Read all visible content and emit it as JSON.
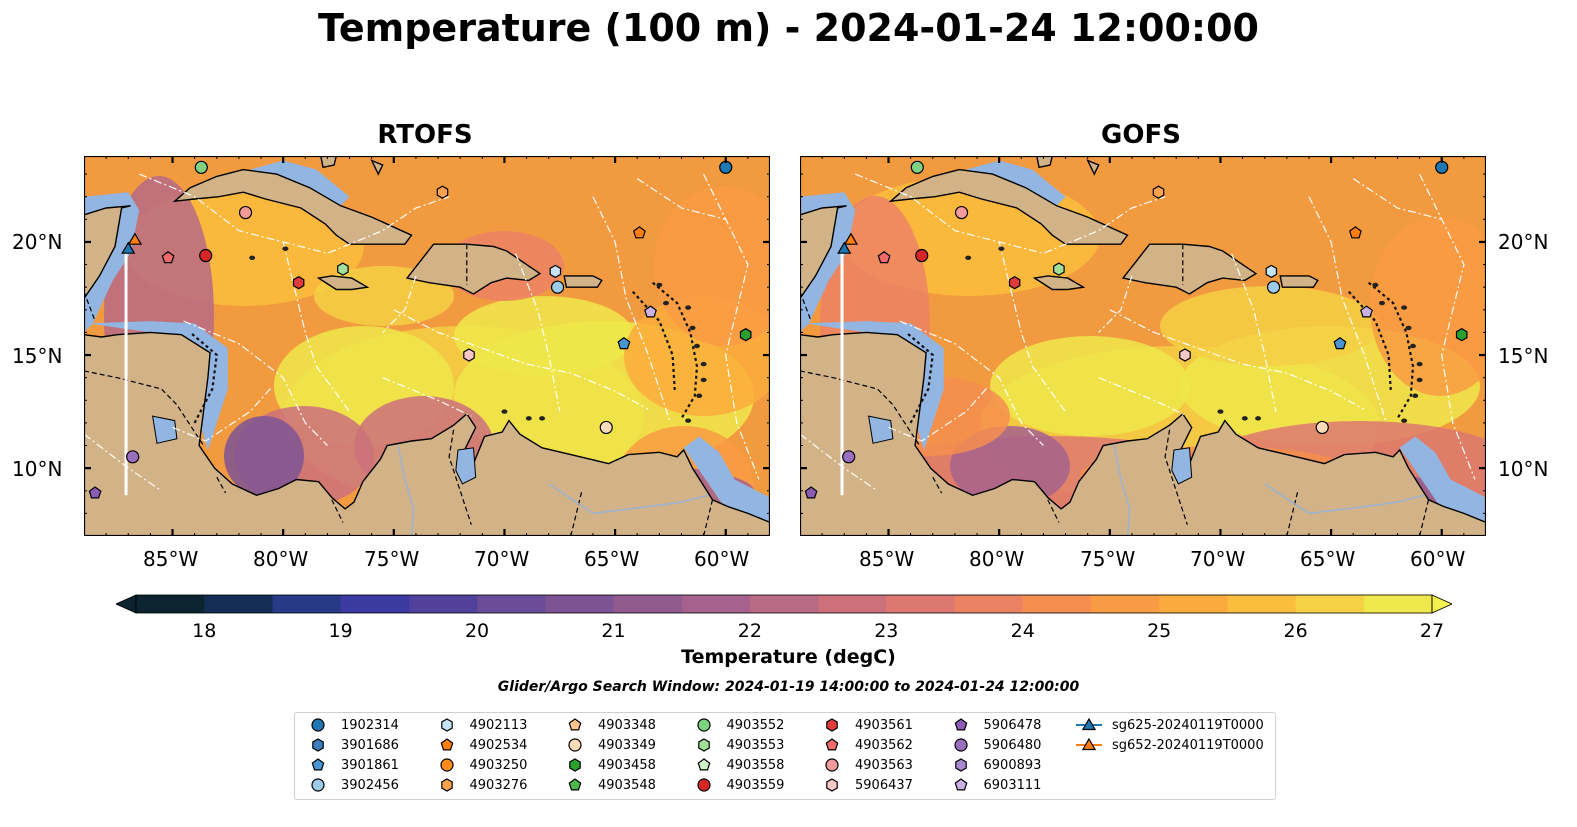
{
  "title": "Temperature (100 m) - 2024-01-24 12:00:00",
  "panels": [
    {
      "title": "RTOFS"
    },
    {
      "title": "GOFS"
    }
  ],
  "axes": {
    "lon_labels": [
      "85°W",
      "80°W",
      "75°W",
      "70°W",
      "65°W",
      "60°W"
    ],
    "lat_labels": [
      "20°N",
      "15°N",
      "10°N"
    ]
  },
  "colorbar": {
    "label": "Temperature (degC)",
    "ticks": [
      "18",
      "19",
      "20",
      "21",
      "22",
      "23",
      "24",
      "25",
      "26",
      "27"
    ],
    "vmin": 17.5,
    "vmax": 27,
    "colors": [
      "#0b2430",
      "#132d55",
      "#263a86",
      "#3a3aa0",
      "#51419c",
      "#6a4b98",
      "#7e5394",
      "#925b90",
      "#a6628d",
      "#b96a85",
      "#cc717b",
      "#dd7870",
      "#ec8264",
      "#f58e4f",
      "#f99b44",
      "#fbab3c",
      "#fbbd3d",
      "#f6d045",
      "#eee84a"
    ]
  },
  "search_window": "Glider/Argo Search Window: 2024-01-19 14:00:00 to 2024-01-24 12:00:00",
  "legend": [
    {
      "label": "1902314",
      "marker": "circle",
      "color": "#1f77b4"
    },
    {
      "label": "3901686",
      "marker": "hexagon",
      "color": "#3d7fbd"
    },
    {
      "label": "3901861",
      "marker": "pentagon",
      "color": "#4a95d0"
    },
    {
      "label": "3902456",
      "marker": "circle",
      "color": "#9ecae9"
    },
    {
      "label": "4902113",
      "marker": "hexagon",
      "color": "#c6e2f5"
    },
    {
      "label": "4902534",
      "marker": "pentagon",
      "color": "#ff7f0e"
    },
    {
      "label": "4903250",
      "marker": "circle",
      "color": "#ff8c1a"
    },
    {
      "label": "4903276",
      "marker": "hexagon",
      "color": "#ffa34d"
    },
    {
      "label": "4903348",
      "marker": "pentagon",
      "color": "#ffc58f"
    },
    {
      "label": "4903349",
      "marker": "circle",
      "color": "#ffdcb9"
    },
    {
      "label": "4903458",
      "marker": "hexagon",
      "color": "#2ca02c"
    },
    {
      "label": "4903548",
      "marker": "pentagon",
      "color": "#4cb84c"
    },
    {
      "label": "4903552",
      "marker": "circle",
      "color": "#7fd27f"
    },
    {
      "label": "4903553",
      "marker": "hexagon",
      "color": "#a2e09a"
    },
    {
      "label": "4903558",
      "marker": "pentagon",
      "color": "#cdf2c6"
    },
    {
      "label": "4903559",
      "marker": "circle",
      "color": "#d62728"
    },
    {
      "label": "4903561",
      "marker": "hexagon",
      "color": "#e03c3c"
    },
    {
      "label": "4903562",
      "marker": "pentagon",
      "color": "#ef6b6b"
    },
    {
      "label": "4903563",
      "marker": "circle",
      "color": "#f39a9a"
    },
    {
      "label": "5906437",
      "marker": "hexagon",
      "color": "#f8c8c8"
    },
    {
      "label": "5906478",
      "marker": "pentagon",
      "color": "#8c5db5"
    },
    {
      "label": "5906480",
      "marker": "circle",
      "color": "#9a6fc0"
    },
    {
      "label": "6900893",
      "marker": "hexagon",
      "color": "#a98ad0"
    },
    {
      "label": "6903111",
      "marker": "pentagon",
      "color": "#cbb2e6"
    },
    {
      "label": "sg625-20240119T0000",
      "marker": "triangle-line",
      "color": "#1f77b4"
    },
    {
      "label": "sg652-20240119T0000",
      "marker": "triangle-line",
      "color": "#ff7f0e"
    }
  ],
  "map_markers": [
    {
      "label": "1902314",
      "lon": -60,
      "lat": 23.3
    },
    {
      "label": "4902534",
      "lon": -63.9,
      "lat": 20.4
    },
    {
      "label": "4903559",
      "lon": -83.5,
      "lat": 19.4
    },
    {
      "label": "4903562",
      "lon": -85.2,
      "lat": 19.3
    },
    {
      "label": "4903563",
      "lon": -81.7,
      "lat": 21.3
    },
    {
      "label": "4903561",
      "lon": -79.3,
      "lat": 18.2
    },
    {
      "label": "4903553",
      "lon": -77.3,
      "lat": 18.8
    },
    {
      "label": "4902113",
      "lon": -67.7,
      "lat": 18.7
    },
    {
      "label": "3902456",
      "lon": -67.6,
      "lat": 18.0
    },
    {
      "label": "3901861",
      "lon": -64.6,
      "lat": 15.5
    },
    {
      "label": "6903111",
      "lon": -63.4,
      "lat": 16.9
    },
    {
      "label": "4903458",
      "lon": -59.1,
      "lat": 15.9
    },
    {
      "label": "5906437",
      "lon": -71.6,
      "lat": 15.0
    },
    {
      "label": "4903349",
      "lon": -65.4,
      "lat": 11.8
    },
    {
      "label": "4903552",
      "lon": -83.7,
      "lat": 23.3
    },
    {
      "label": "4903276",
      "lon": -72.8,
      "lat": 22.2
    },
    {
      "label": "5906480",
      "lon": -86.8,
      "lat": 10.5
    },
    {
      "label": "5906478",
      "lon": -88.5,
      "lat": 8.9
    },
    {
      "label": "sg652-20240119T0000",
      "lon": -86.7,
      "lat": 20.1
    },
    {
      "label": "sg625-20240119T0000",
      "lon": -87.0,
      "lat": 19.7
    }
  ]
}
